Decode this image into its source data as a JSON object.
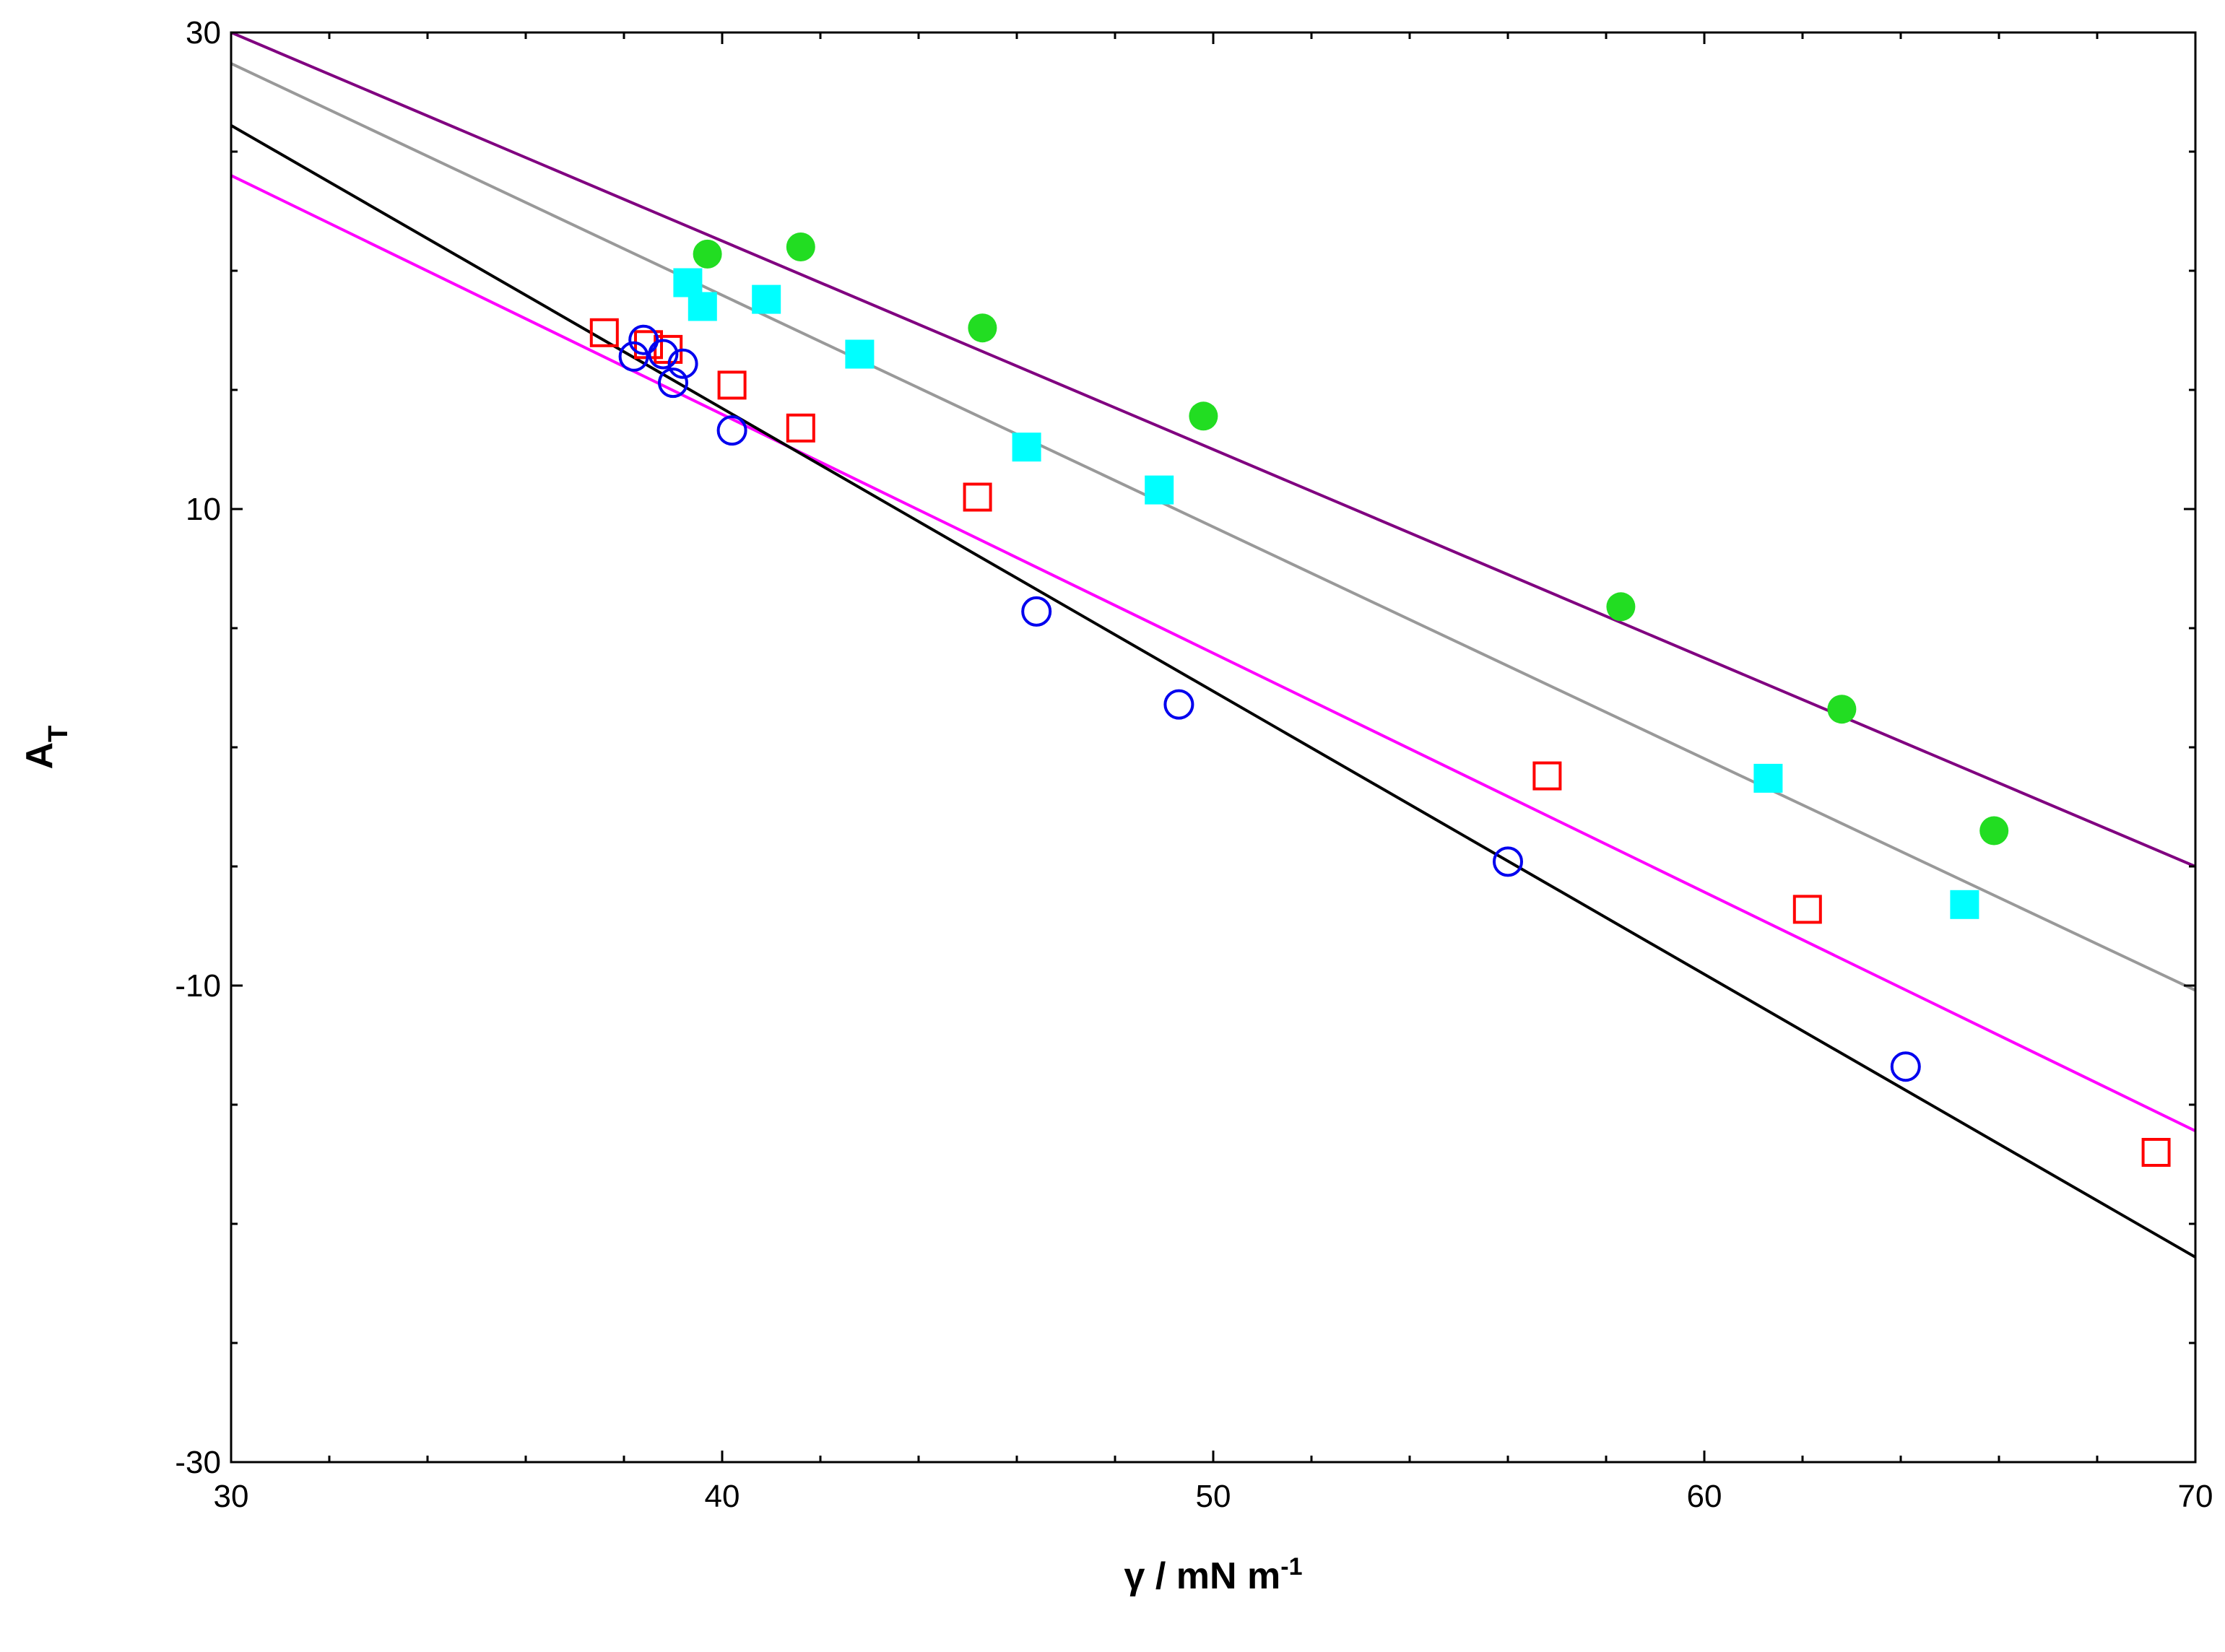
{
  "chart_data": {
    "type": "scatter",
    "title": "",
    "xlabel": "γ / mN m",
    "xlabel_sup": "-1",
    "ylabel": "A",
    "ylabel_sub": "T",
    "xlim": [
      30,
      70
    ],
    "ylim": [
      -30,
      30
    ],
    "x_ticks_major": [
      30,
      40,
      50,
      60,
      70
    ],
    "x_tick_labels": [
      "30",
      "40",
      "50",
      "60",
      "70"
    ],
    "y_ticks_major": [
      -30,
      -10,
      10,
      30
    ],
    "y_tick_labels": [
      "-30",
      "-10",
      "10",
      "30"
    ],
    "x_minor_step": 2,
    "y_minor_step": 5,
    "grid": false,
    "series": [
      {
        "marker": "filled-circle",
        "color": "#22dd22",
        "points": [
          [
            39.7,
            20.7
          ],
          [
            41.6,
            21.0
          ],
          [
            45.3,
            17.6
          ],
          [
            49.8,
            13.9
          ],
          [
            58.3,
            5.9
          ],
          [
            62.8,
            1.6
          ],
          [
            65.9,
            -3.5
          ]
        ]
      },
      {
        "marker": "filled-square",
        "color": "#00ffff",
        "points": [
          [
            39.3,
            19.5
          ],
          [
            39.6,
            18.5
          ],
          [
            40.9,
            18.8
          ],
          [
            42.8,
            16.5
          ],
          [
            46.2,
            12.6
          ],
          [
            48.9,
            10.8
          ],
          [
            61.3,
            -1.3
          ],
          [
            65.3,
            -6.6
          ]
        ]
      },
      {
        "marker": "open-square",
        "color": "#ff0000",
        "points": [
          [
            37.6,
            17.4
          ],
          [
            38.5,
            16.9
          ],
          [
            38.9,
            16.7
          ],
          [
            40.2,
            15.2
          ],
          [
            41.6,
            13.4
          ],
          [
            45.2,
            10.5
          ],
          [
            56.8,
            -1.2
          ],
          [
            62.1,
            -6.8
          ],
          [
            69.2,
            -17.0
          ]
        ]
      },
      {
        "marker": "open-circle",
        "color": "#0000ee",
        "points": [
          [
            38.2,
            16.4
          ],
          [
            38.4,
            17.1
          ],
          [
            38.8,
            16.5
          ],
          [
            39.0,
            15.3
          ],
          [
            39.2,
            16.1
          ],
          [
            40.2,
            13.3
          ],
          [
            46.4,
            5.7
          ],
          [
            49.3,
            1.8
          ],
          [
            56.0,
            -4.8
          ],
          [
            64.1,
            -13.4
          ]
        ]
      }
    ],
    "fit_lines": [
      {
        "color": "#800080",
        "x": [
          30,
          70
        ],
        "y": [
          30.0,
          -5.0
        ]
      },
      {
        "color": "#999999",
        "x": [
          30,
          70
        ],
        "y": [
          28.7,
          -10.2
        ]
      },
      {
        "color": "#ff00ff",
        "x": [
          30,
          70
        ],
        "y": [
          24.0,
          -16.1
        ]
      },
      {
        "color": "#000000",
        "x": [
          30,
          70
        ],
        "y": [
          26.1,
          -21.4
        ]
      }
    ]
  }
}
